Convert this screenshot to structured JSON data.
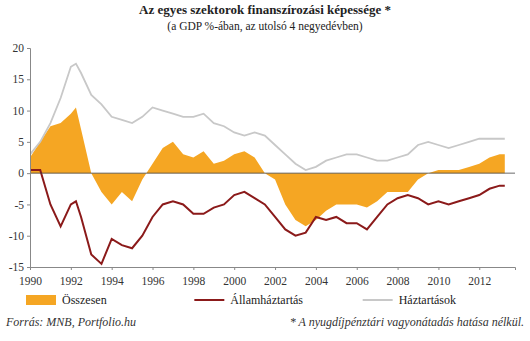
{
  "chart_data": {
    "type": "line",
    "title": "Az egyes szektorok finanszírozási képessége *",
    "subtitle": "(a GDP %-ában, az utolsó 4 negyedévben)",
    "source": "Forrás: MNB, Portfolio.hu",
    "footnote": "* A nyugdíjpénztári vagyonátadás hatása nélkül.",
    "x": [
      1990,
      1990.5,
      1991,
      1991.5,
      1992,
      1992.25,
      1992.5,
      1993,
      1993.5,
      1994,
      1994.5,
      1995,
      1995.5,
      1996,
      1996.5,
      1997,
      1997.5,
      1998,
      1998.5,
      1999,
      1999.5,
      2000,
      2000.5,
      2001,
      2001.5,
      2002,
      2002.5,
      2003,
      2003.5,
      2004,
      2004.5,
      2005,
      2005.5,
      2006,
      2006.5,
      2007,
      2007.5,
      2008,
      2008.5,
      2009,
      2009.5,
      2010,
      2010.5,
      2011,
      2011.5,
      2012,
      2012.5,
      2013,
      2013.25
    ],
    "series": [
      {
        "name": "Összesen",
        "type": "area",
        "color": "#f5a623",
        "values": [
          2.5,
          5,
          7.5,
          8,
          9.5,
          10.5,
          7,
          0,
          -3,
          -5,
          -3,
          -4.5,
          -1,
          1.5,
          4,
          5,
          3,
          2.5,
          3.5,
          1.5,
          2,
          3,
          3.5,
          2.5,
          0,
          -1,
          -5,
          -7.5,
          -8.5,
          -7.5,
          -6,
          -5,
          -5,
          -5,
          -5.5,
          -4.5,
          -3,
          -3,
          -3,
          -1,
          0,
          0.5,
          0.5,
          0.5,
          1,
          1.5,
          2.5,
          3,
          3
        ]
      },
      {
        "name": "Államháztartás",
        "type": "line",
        "color": "#8b1a1a",
        "values": [
          0.5,
          0.5,
          -5,
          -8.5,
          -5,
          -4.5,
          -7,
          -13,
          -14.5,
          -10.5,
          -11.5,
          -12,
          -10,
          -7,
          -5,
          -4.5,
          -5,
          -6.5,
          -6.5,
          -5.5,
          -5,
          -3.5,
          -3,
          -4,
          -5,
          -7,
          -9,
          -10,
          -9.5,
          -7,
          -7.5,
          -7,
          -8,
          -8,
          -9,
          -7,
          -5,
          -4,
          -3.5,
          -4,
          -5,
          -4.5,
          -5,
          -4.5,
          -4,
          -3.5,
          -2.5,
          -2,
          -2
        ]
      },
      {
        "name": "Háztartások",
        "type": "line",
        "color": "#c8c8c8",
        "values": [
          3,
          5,
          8,
          12,
          17,
          17.5,
          16,
          12.5,
          11,
          9,
          8.5,
          8,
          9,
          10.5,
          10,
          9.5,
          9,
          9,
          9.5,
          8,
          7.5,
          6.5,
          6,
          6.5,
          6,
          4.5,
          3,
          1.5,
          0.5,
          1,
          2,
          2.5,
          3,
          3,
          2.5,
          2,
          2,
          2.5,
          3,
          4.5,
          5,
          4.5,
          4,
          4.5,
          5,
          5.5,
          5.5,
          5.5,
          5.5
        ]
      }
    ],
    "xlim": [
      1990,
      2013.75
    ],
    "xticks": [
      1990,
      1992,
      1994,
      1996,
      1998,
      2000,
      2002,
      2004,
      2006,
      2008,
      2010,
      2012
    ],
    "ylim": [
      -15,
      20
    ],
    "yticks": [
      -15,
      -10,
      -5,
      0,
      5,
      10,
      15,
      20
    ],
    "grid": false,
    "legend": "bottom"
  }
}
